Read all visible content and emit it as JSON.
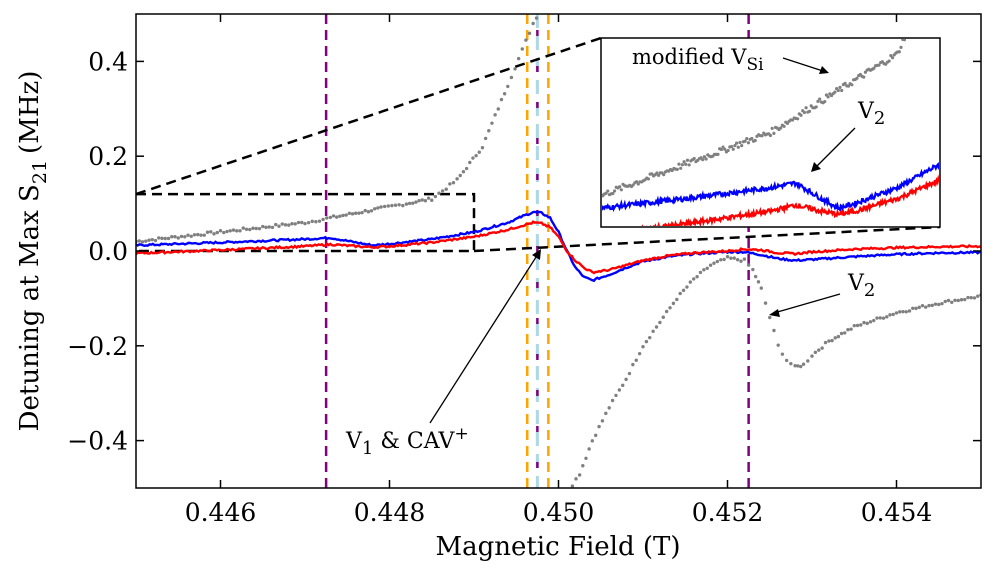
{
  "chart_data": {
    "type": "scatter",
    "xlabel": "Magnetic Field (T)",
    "ylabel_main": "Detuning at Max S",
    "ylabel_sub": "21",
    "ylabel_unit": "(MHz)",
    "xlim": [
      0.445,
      0.455
    ],
    "ylim": [
      -0.5,
      0.5
    ],
    "xticks": [
      0.446,
      0.448,
      0.45,
      0.452,
      0.454
    ],
    "xtick_labels": [
      "0.446",
      "0.448",
      "0.450",
      "0.452",
      "0.454"
    ],
    "yticks": [
      0.4,
      0.2,
      0.0,
      -0.2,
      -0.4
    ],
    "ytick_labels": [
      "0.4",
      "0.2",
      "0.0",
      "−0.2",
      "−0.4"
    ],
    "grid": false,
    "colors": {
      "series_gray": "#808080",
      "series_blue": "#0000ff",
      "series_red": "#ff0000",
      "line_purple": "#800080",
      "line_orange": "#ffa500",
      "line_lightblue": "#add8e6",
      "zoom_box": "#000000"
    },
    "vertical_lines": [
      {
        "name": "purple-line-left",
        "x": 0.44725,
        "color": "#800080"
      },
      {
        "name": "purple-line-right",
        "x": 0.45225,
        "color": "#800080"
      },
      {
        "name": "orange-line-left",
        "x": 0.44963,
        "color": "#ffa500"
      },
      {
        "name": "orange-line-right",
        "x": 0.44988,
        "color": "#ffa500"
      },
      {
        "name": "lightblue-line",
        "x": 0.44975,
        "color": "#add8e6"
      },
      {
        "name": "purple-dash-center",
        "x": 0.44975,
        "color": "#800080"
      }
    ],
    "series": [
      {
        "name": "gray",
        "color": "#808080",
        "x": [
          0.445,
          0.4455,
          0.446,
          0.4465,
          0.447,
          0.4473,
          0.4476,
          0.4479,
          0.4482,
          0.4485,
          0.4488,
          0.4491,
          0.4494,
          0.4497,
          0.4499,
          0.44995,
          0.45025,
          0.4504,
          0.4506,
          0.4508,
          0.451,
          0.4512,
          0.4514,
          0.4516,
          0.4518,
          0.452,
          0.4522,
          0.4523,
          0.4524,
          0.4525,
          0.4526,
          0.4527,
          0.4528,
          0.4529,
          0.453,
          0.4532,
          0.4535,
          0.454,
          0.4545,
          0.455
        ],
        "y": [
          0.02,
          0.03,
          0.04,
          0.05,
          0.06,
          0.07,
          0.08,
          0.09,
          0.1,
          0.11,
          0.15,
          0.22,
          0.35,
          0.48,
          0.55,
          -0.55,
          -0.47,
          -0.4,
          -0.33,
          -0.27,
          -0.2,
          -0.15,
          -0.1,
          -0.06,
          -0.03,
          -0.015,
          -0.02,
          -0.04,
          -0.08,
          -0.14,
          -0.2,
          -0.23,
          -0.245,
          -0.24,
          -0.22,
          -0.19,
          -0.16,
          -0.13,
          -0.11,
          -0.095
        ]
      },
      {
        "name": "blue",
        "color": "#0000ff",
        "x": [
          0.445,
          0.446,
          0.447,
          0.4473,
          0.4476,
          0.4478,
          0.448,
          0.4485,
          0.449,
          0.4494,
          0.4496,
          0.4497,
          0.4498,
          0.4499,
          0.45,
          0.4501,
          0.4502,
          0.4503,
          0.4504,
          0.4506,
          0.4508,
          0.451,
          0.4513,
          0.4516,
          0.452,
          0.4522,
          0.4524,
          0.4526,
          0.4528,
          0.453,
          0.4535,
          0.454,
          0.4545,
          0.455
        ],
        "y": [
          0.012,
          0.018,
          0.025,
          0.028,
          0.018,
          0.012,
          0.015,
          0.025,
          0.04,
          0.06,
          0.075,
          0.082,
          0.08,
          0.07,
          0.04,
          0.0,
          -0.035,
          -0.055,
          -0.062,
          -0.05,
          -0.035,
          -0.022,
          -0.012,
          -0.006,
          -0.002,
          -0.002,
          -0.008,
          -0.016,
          -0.02,
          -0.018,
          -0.012,
          -0.007,
          -0.004,
          -0.003
        ]
      },
      {
        "name": "red",
        "color": "#ff0000",
        "x": [
          0.445,
          0.446,
          0.447,
          0.4473,
          0.4476,
          0.4478,
          0.448,
          0.4485,
          0.449,
          0.4494,
          0.4496,
          0.4497,
          0.4498,
          0.4499,
          0.45,
          0.4501,
          0.4502,
          0.4503,
          0.4504,
          0.4506,
          0.4508,
          0.451,
          0.4513,
          0.4516,
          0.452,
          0.4522,
          0.4524,
          0.4526,
          0.4528,
          0.453,
          0.4535,
          0.454,
          0.4545,
          0.455
        ],
        "y": [
          -0.005,
          0.002,
          0.01,
          0.014,
          0.01,
          0.008,
          0.01,
          0.018,
          0.03,
          0.045,
          0.055,
          0.06,
          0.058,
          0.05,
          0.03,
          0.0,
          -0.02,
          -0.035,
          -0.045,
          -0.04,
          -0.03,
          -0.02,
          -0.01,
          -0.004,
          0.0,
          0.004,
          0.002,
          -0.004,
          -0.006,
          -0.002,
          0.004,
          0.007,
          0.009,
          0.01
        ]
      }
    ],
    "zoom_box": {
      "x": [
        0.445,
        0.449
      ],
      "y": [
        0.0,
        0.12
      ]
    },
    "inset": {
      "annotation_modified_prefix": "modified V",
      "annotation_modified_sub": "Si",
      "annotation_v2_main": "V",
      "annotation_v2_sub": "2"
    },
    "annotations": {
      "v1_main": "V",
      "v1_sub": "1",
      "v1_rest": " & CAV",
      "v1_sup": "+",
      "v2_main": "V",
      "v2_sub": "2"
    }
  }
}
